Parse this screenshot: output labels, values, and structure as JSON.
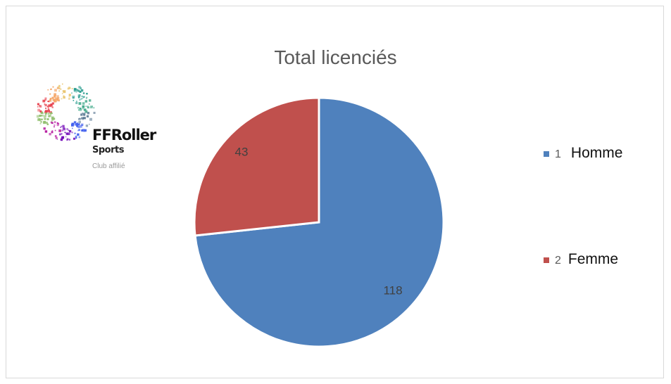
{
  "chart_data": {
    "type": "pie",
    "title": "Total licenciés",
    "categories": [
      "1",
      "2"
    ],
    "labels": [
      "Homme",
      "Femme"
    ],
    "values": [
      118,
      43
    ],
    "colors": [
      "#4f81bd",
      "#c0504d"
    ],
    "legend_position": "right"
  },
  "logo": {
    "brand": "FFRoller",
    "brand_sub": "Sports",
    "tagline": "Club affilié"
  }
}
